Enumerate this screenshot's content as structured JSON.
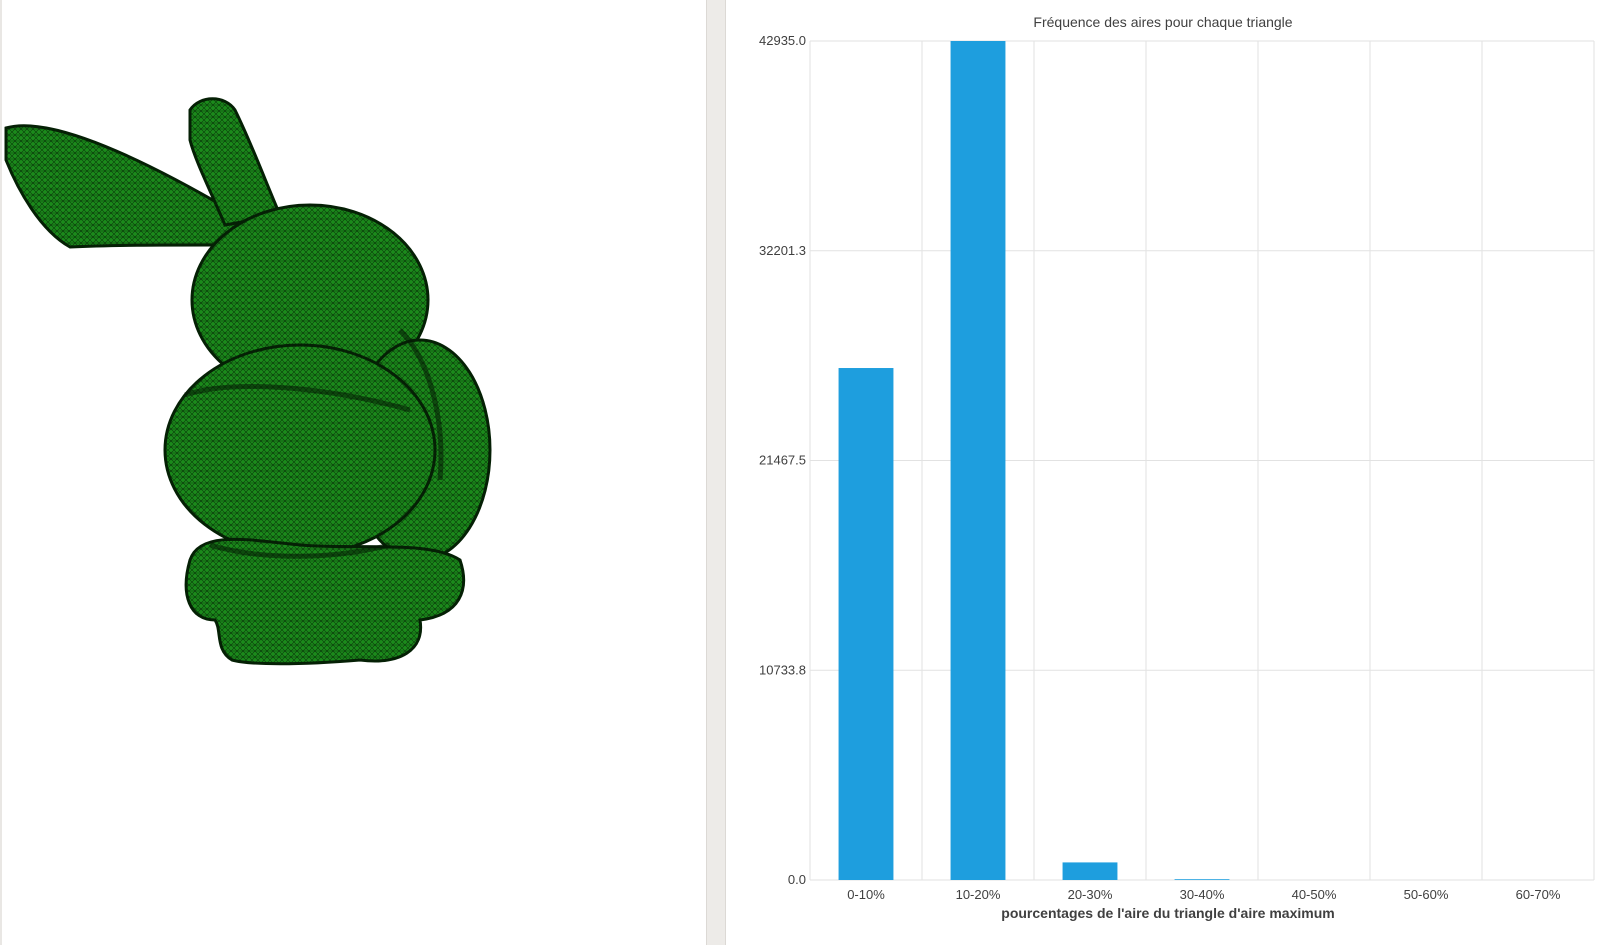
{
  "viewer": {
    "model": "bunny-mesh",
    "fill_color": "#1b8a1b",
    "wire_color": "#0a3a0a"
  },
  "chart": {
    "bar_color": "#1e9ede",
    "grid_color": "#e2e2e2"
  },
  "chart_data": {
    "type": "bar",
    "title": "Fréquence des aires pour chaque triangle",
    "xlabel": "pourcentages de l'aire du triangle d'aire maximum",
    "ylabel": "",
    "categories": [
      "0-10%",
      "10-20%",
      "20-30%",
      "30-40%",
      "40-50%",
      "50-60%",
      "60-70%"
    ],
    "values": [
      26200,
      42935,
      900,
      40,
      0,
      0,
      0
    ],
    "yticks": [
      "0.0",
      "10733.8",
      "21467.5",
      "32201.3",
      "42935.0"
    ],
    "ylim": [
      0,
      42935
    ],
    "grid": true,
    "legend": "none"
  }
}
